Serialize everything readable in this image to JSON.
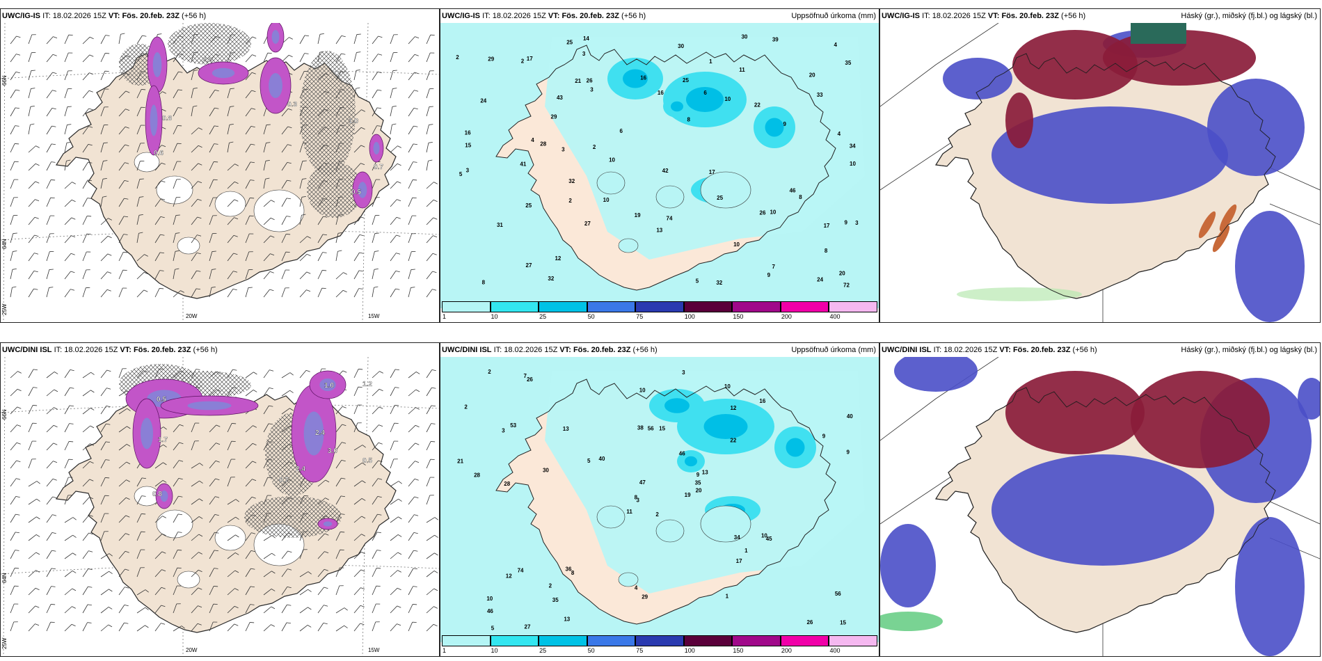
{
  "panels": [
    {
      "id": "p1",
      "model": "UWC/IG-IS",
      "it_label": "IT:",
      "it": "18.02.2026 15Z",
      "vt_label": "VT:",
      "vt": "Fös. 20.feb. 23Z",
      "lead": "(+56 h)",
      "right_title": ""
    },
    {
      "id": "p2",
      "model": "UWC/IG-IS",
      "it_label": "IT:",
      "it": "18.02.2026 15Z",
      "vt_label": "VT:",
      "vt": "Fös. 20.feb. 23Z",
      "lead": "(+56 h)",
      "right_title": "Uppsöfnuð úrkoma (mm)"
    },
    {
      "id": "p3",
      "model": "UWC/IG-IS",
      "it_label": "IT:",
      "it": "18.02.2026 15Z",
      "vt_label": "VT:",
      "vt": "Fös. 20.feb. 23Z",
      "lead": "(+56 h)",
      "right_title": "Háský (gr.), miðský (fj.bl.) og lágský (bl.)"
    },
    {
      "id": "p4",
      "model": "UWC/DINI ISL",
      "it_label": "IT:",
      "it": "18.02.2026 15Z",
      "vt_label": "VT:",
      "vt": "Fös. 20.feb. 23Z",
      "lead": "(+56 h)",
      "right_title": ""
    },
    {
      "id": "p5",
      "model": "UWC/DINI ISL",
      "it_label": "IT:",
      "it": "18.02.2026 15Z",
      "vt_label": "VT:",
      "vt": "Fös. 20.feb. 23Z",
      "lead": "(+56 h)",
      "right_title": "Uppsöfnuð úrkoma (mm)"
    },
    {
      "id": "p6",
      "model": "UWC/DINI ISL",
      "it_label": "IT:",
      "it": "18.02.2026 15Z",
      "vt_label": "VT:",
      "vt": "Fös. 20.feb. 23Z",
      "lead": "(+56 h)",
      "right_title": "Háský (gr.), miðský (fj.bl.) og lágský (bl.)"
    }
  ],
  "axis_labels": {
    "lat66": "66N",
    "lat64": "64N",
    "lon20": "20W",
    "lon15": "15W",
    "lon25": "25W"
  },
  "legend": {
    "labels": [
      "1",
      "10",
      "25",
      "50",
      "75",
      "100",
      "150",
      "200",
      "400"
    ],
    "colors": [
      "#b4f5f5",
      "#33e6f0",
      "#00c2e6",
      "#3a78e8",
      "#2a3ab0",
      "#5a003a",
      "#a0088a",
      "#f000a8",
      "#f5b8f0"
    ]
  },
  "precip_top": [
    "3",
    "4",
    "10",
    "34",
    "10",
    "9",
    "10",
    "30",
    "17",
    "20",
    "29",
    "8",
    "9",
    "27",
    "31",
    "42",
    "32",
    "16",
    "14",
    "16",
    "20",
    "25",
    "27",
    "25",
    "8",
    "39",
    "8",
    "10",
    "5",
    "35",
    "32",
    "72",
    "41",
    "30",
    "4",
    "15",
    "10",
    "25",
    "33",
    "46",
    "32",
    "24",
    "19",
    "74",
    "8",
    "2",
    "6",
    "22",
    "26",
    "12",
    "24",
    "43",
    "9",
    "11",
    "2",
    "13",
    "16",
    "26",
    "10",
    "17",
    "3",
    "4",
    "6",
    "3",
    "21",
    "17",
    "29",
    "28",
    "25",
    "1",
    "2",
    "3",
    "3",
    "5",
    "7",
    "2"
  ],
  "precip_bottom": [
    "2",
    "3",
    "3",
    "10",
    "9",
    "8",
    "10",
    "15",
    "12",
    "19",
    "26",
    "15",
    "28",
    "40",
    "11",
    "22",
    "27",
    "38",
    "46",
    "74",
    "40",
    "46",
    "35",
    "56",
    "13",
    "45",
    "53",
    "10",
    "28",
    "34",
    "9",
    "8",
    "4",
    "47",
    "13",
    "16",
    "36",
    "26",
    "56",
    "10",
    "3",
    "5",
    "30",
    "17",
    "13",
    "21",
    "35",
    "5",
    "29",
    "20",
    "12",
    "9",
    "2",
    "1",
    "1",
    "2",
    "7",
    "2"
  ],
  "wind_top_labels": [
    "0.6",
    "2.8",
    "0.8",
    "0.3",
    "0.5",
    "1.0",
    "0.7"
  ],
  "wind_bottom_labels": [
    "1.0",
    "1.2",
    "1.7",
    "2.4",
    "3.0",
    "2.4",
    "0.8",
    "0.5",
    "0.7",
    "0.5"
  ]
}
